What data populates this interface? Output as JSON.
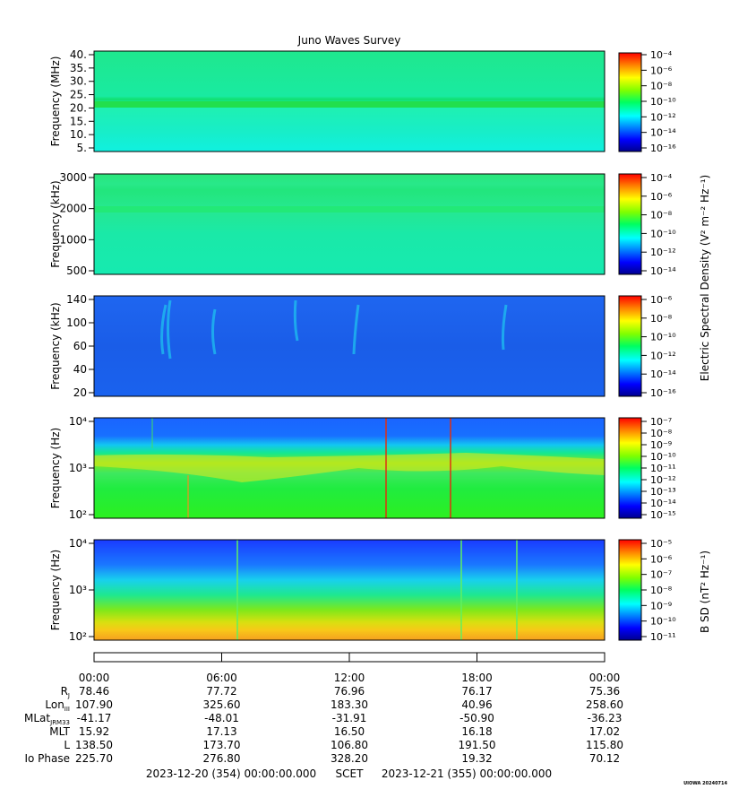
{
  "title": "Juno Waves Survey",
  "footer": {
    "start": "2023-12-20 (354) 00:00:00.000",
    "scet": "SCET",
    "end": "2023-12-21 (355) 00:00:00.000",
    "stamp": "UIOWA 20240714"
  },
  "colorbar_labels": {
    "electric": "Electric Spectral Density (V² m⁻² Hz⁻¹)",
    "magnetic": "B SD (nT² Hz⁻¹)"
  },
  "chart_data": [
    {
      "type": "heatmap",
      "ylabel": "Frequency (MHz)",
      "yticks": [
        "40.",
        "35.",
        "30.",
        "25.",
        "20.",
        "15.",
        "10.",
        "5."
      ],
      "ylim": [
        4,
        41
      ],
      "colorbar_ticks": [
        "10⁻⁴",
        "10⁻⁶",
        "10⁻⁸",
        "10⁻¹⁰",
        "10⁻¹²",
        "10⁻¹⁴",
        "10⁻¹⁶"
      ],
      "clim_exp": [
        -17,
        -4
      ]
    },
    {
      "type": "heatmap",
      "ylabel": "Frequency (kHz)",
      "yticks": [
        "3000",
        "2000",
        "1000",
        "500"
      ],
      "scale": "log",
      "colorbar_ticks": [
        "10⁻⁴",
        "10⁻⁶",
        "10⁻⁸",
        "10⁻¹⁰",
        "10⁻¹²",
        "10⁻¹⁴"
      ],
      "clim_exp": [
        -15,
        -3
      ]
    },
    {
      "type": "heatmap",
      "ylabel": "Frequency (kHz)",
      "yticks": [
        "140",
        "100",
        "60",
        "40",
        "20"
      ],
      "colorbar_ticks": [
        "10⁻⁶",
        "10⁻⁸",
        "10⁻¹⁰",
        "10⁻¹²",
        "10⁻¹⁴",
        "10⁻¹⁶"
      ],
      "clim_exp": [
        -16,
        -6
      ]
    },
    {
      "type": "heatmap",
      "ylabel": "Frequency (Hz)",
      "yticks": [
        "10⁴",
        "10³",
        "10²"
      ],
      "scale": "log",
      "colorbar_ticks": [
        "10⁻⁷",
        "10⁻⁸",
        "10⁻⁹",
        "10⁻¹⁰",
        "10⁻¹¹",
        "10⁻¹²",
        "10⁻¹³",
        "10⁻¹⁴",
        "10⁻¹⁵"
      ],
      "clim_exp": [
        -15,
        -7
      ]
    },
    {
      "type": "heatmap",
      "ylabel": "Frequency (Hz)",
      "yticks": [
        "10⁴",
        "10³",
        "10²"
      ],
      "scale": "log",
      "colorbar_ticks": [
        "10⁻⁵",
        "10⁻⁶",
        "10⁻⁷",
        "10⁻⁸",
        "10⁻⁹",
        "10⁻¹⁰",
        "10⁻¹¹"
      ],
      "clim_exp": [
        -11,
        -4.5
      ]
    }
  ],
  "time_axis": {
    "ticks": [
      "00:00",
      "06:00",
      "12:00",
      "18:00",
      "00:00"
    ]
  },
  "ephemeris": {
    "rows": [
      {
        "label": "R",
        "sub": "J",
        "values": [
          "78.46",
          "77.72",
          "76.96",
          "76.17",
          "75.36"
        ]
      },
      {
        "label": "Lon",
        "sub": "III",
        "values": [
          "107.90",
          "325.60",
          "183.30",
          "40.96",
          "258.60"
        ]
      },
      {
        "label": "MLat",
        "sub": "JRM33",
        "values": [
          "-41.17",
          "-48.01",
          "-31.91",
          "-50.90",
          "-36.23"
        ]
      },
      {
        "label": "MLT",
        "sub": "",
        "values": [
          "15.92",
          "17.13",
          "16.50",
          "16.18",
          "17.02"
        ]
      },
      {
        "label": "L",
        "sub": "",
        "values": [
          "138.50",
          "173.70",
          "106.80",
          "191.50",
          "115.80"
        ]
      },
      {
        "label": "Io Phase",
        "sub": "",
        "values": [
          "225.70",
          "276.80",
          "328.20",
          "19.32",
          "70.12"
        ]
      }
    ]
  }
}
